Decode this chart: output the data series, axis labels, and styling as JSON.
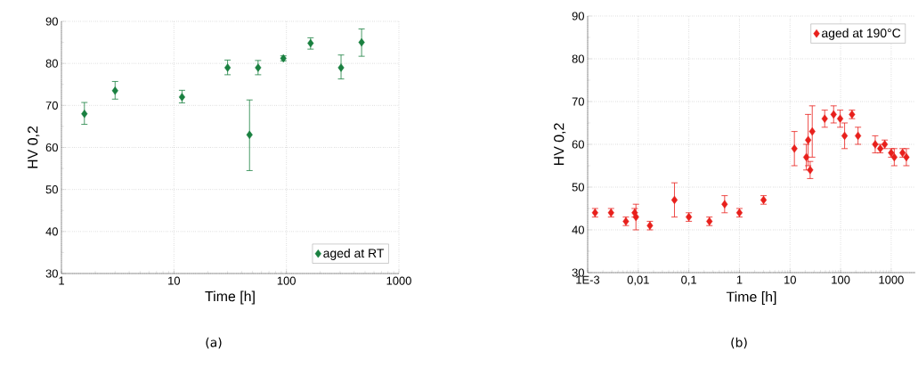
{
  "chart_data": [
    {
      "type": "scatter",
      "xlabel": "Time [h]",
      "ylabel": "HV 0,2",
      "log": "x",
      "grid": true,
      "legend": "bottom right",
      "marker": "diamond",
      "xlim": [
        1,
        1000
      ],
      "ylim": [
        30,
        90
      ],
      "xticks": [
        1,
        10,
        100,
        1000
      ],
      "yticks": [
        30,
        40,
        50,
        60,
        70,
        80,
        90
      ],
      "annotations": [
        "(a)"
      ],
      "series": [
        {
          "name": "aged at RT",
          "color": "#1a8040",
          "x": [
            1.6,
            3.0,
            11.8,
            30,
            47,
            56,
            94,
            164,
            306,
            466
          ],
          "values": [
            68,
            73.5,
            72,
            79,
            63,
            79,
            81.2,
            84.8,
            79,
            85
          ],
          "errors": [
            [
              65.5,
              70.7
            ],
            [
              71.5,
              75.7
            ],
            [
              70.6,
              73.6
            ],
            [
              77.3,
              80.8
            ],
            [
              54.5,
              71.3
            ],
            [
              77.3,
              80.7
            ],
            [
              80.6,
              81.8
            ],
            [
              83.4,
              86.1
            ],
            [
              76.3,
              82
            ],
            [
              81.7,
              88.2
            ]
          ]
        }
      ]
    },
    {
      "type": "scatter",
      "xlabel": "Time [h]",
      "ylabel": "HV 0,2",
      "log": "x",
      "grid": true,
      "legend": "top right",
      "marker": "diamond",
      "xlim": [
        0.001,
        3000
      ],
      "ylim": [
        30,
        90
      ],
      "xticks": [
        {
          "value": 0.001,
          "label": "1E-3"
        },
        {
          "value": 0.01,
          "label": "0,01"
        },
        {
          "value": 0.1,
          "label": "0,1"
        },
        1,
        10,
        100,
        1000
      ],
      "yticks": [
        30,
        40,
        50,
        60,
        70,
        80,
        90
      ],
      "annotations": [
        "(b)"
      ],
      "series": [
        {
          "name": "aged at 190°C",
          "color": "#e8201c",
          "x": [
            0.0014,
            0.0029,
            0.0057,
            0.0085,
            0.009,
            0.017,
            0.052,
            0.1,
            0.255,
            0.51,
            1,
            3.0,
            12.2,
            21,
            22.8,
            25.0,
            27.5,
            48.5,
            72.8,
            98,
            120,
            168,
            221,
            483,
            608,
            745,
            1000,
            1150,
            1675,
            1995
          ],
          "values": [
            44,
            44,
            42,
            44,
            43,
            41,
            47,
            43,
            42,
            46,
            44,
            47,
            59,
            57,
            61,
            54,
            63,
            66,
            67,
            66,
            62,
            67,
            62,
            60,
            59,
            60,
            58,
            57,
            58,
            57
          ],
          "errors": [
            1,
            1,
            1,
            1,
            [
              40,
              46
            ],
            1,
            [
              43,
              51
            ],
            1,
            1,
            [
              44,
              48
            ],
            1,
            1,
            [
              55,
              63
            ],
            [
              54,
              60
            ],
            [
              55,
              67
            ],
            [
              52,
              56
            ],
            [
              57,
              69
            ],
            2,
            2,
            2,
            3,
            1,
            2,
            2,
            1,
            1,
            1,
            2,
            1,
            2
          ]
        }
      ]
    }
  ]
}
